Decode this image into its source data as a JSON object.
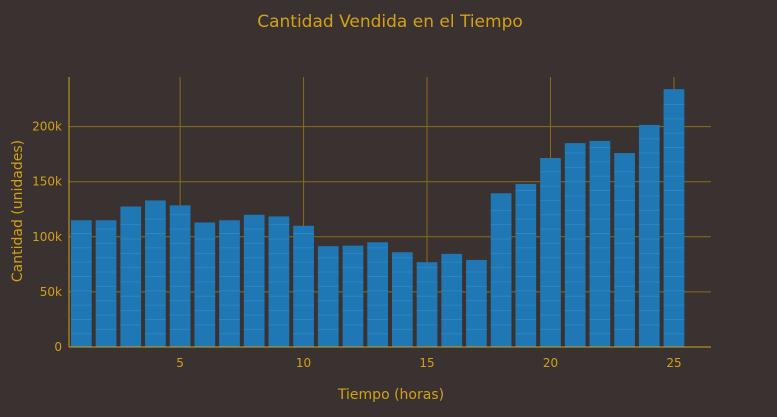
{
  "chart_data": {
    "type": "bar",
    "title": "Cantidad Vendida en el Tiempo",
    "xlabel": "Tiempo (horas)",
    "ylabel": "Cantidad (unidades)",
    "x": [
      1,
      2,
      3,
      4,
      5,
      6,
      7,
      8,
      9,
      10,
      11,
      12,
      13,
      14,
      15,
      16,
      17,
      18,
      19,
      20,
      21,
      22,
      23,
      24,
      25
    ],
    "values": [
      115000,
      115000,
      127500,
      133000,
      128500,
      113000,
      115000,
      120000,
      118500,
      110000,
      91500,
      92000,
      95000,
      86000,
      77000,
      84500,
      79000,
      139500,
      148000,
      171500,
      185000,
      187000,
      176000,
      201500,
      234000
    ],
    "xlim": [
      0.5,
      26.5
    ],
    "ylim": [
      0,
      245000
    ],
    "x_ticks": [
      5,
      10,
      15,
      20,
      25
    ],
    "x_tick_labels": [
      "5",
      "10",
      "15",
      "20",
      "25"
    ],
    "y_ticks": [
      0,
      50000,
      100000,
      150000,
      200000
    ],
    "y_tick_labels": [
      "0",
      "50k",
      "100k",
      "150k",
      "200k"
    ],
    "grid": true,
    "legend": "none",
    "colors": {
      "bar": "#1f77b4",
      "bar_stripe": "#2b86c5",
      "text": "#d4a017",
      "grid": "#8a6d1a",
      "background": "#393230"
    }
  }
}
